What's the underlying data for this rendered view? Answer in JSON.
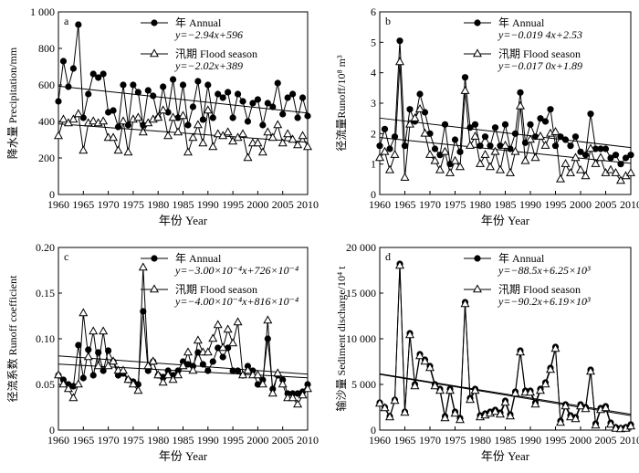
{
  "chart_data": [
    {
      "type": "line",
      "panel_label": "a",
      "xlabel": "年份 Year",
      "ylabel": "降水量 Precipitation/mm",
      "xlim": [
        1960,
        2010
      ],
      "ylim": [
        0,
        1000
      ],
      "xticks": [
        1960,
        1965,
        1970,
        1975,
        1980,
        1985,
        1990,
        1995,
        2000,
        2005,
        2010
      ],
      "yticks": [
        0,
        200,
        400,
        600,
        800,
        1000
      ],
      "ytick_labels": [
        "0",
        "200",
        "400",
        "600",
        "800",
        "1 000"
      ],
      "legend": [
        {
          "name": "年 Annual",
          "equation": "y=−2.94x+596"
        },
        {
          "name": "汛期 Flood season",
          "equation": "y=−2.02x+389"
        }
      ],
      "series": [
        {
          "name": "Annual",
          "marker": "circle",
          "trend": [
            596,
            -2.94
          ],
          "x": [
            1960,
            1961,
            1962,
            1963,
            1964,
            1965,
            1966,
            1967,
            1968,
            1969,
            1970,
            1971,
            1972,
            1973,
            1974,
            1975,
            1976,
            1977,
            1978,
            1979,
            1980,
            1981,
            1982,
            1983,
            1984,
            1985,
            1986,
            1987,
            1988,
            1989,
            1990,
            1991,
            1992,
            1993,
            1994,
            1995,
            1996,
            1997,
            1998,
            1999,
            2000,
            2001,
            2002,
            2003,
            2004,
            2005,
            2006,
            2007,
            2008,
            2009,
            2010
          ],
          "values": [
            510,
            730,
            590,
            690,
            930,
            420,
            550,
            660,
            640,
            660,
            450,
            460,
            370,
            600,
            380,
            600,
            560,
            380,
            570,
            540,
            420,
            590,
            450,
            630,
            420,
            600,
            380,
            480,
            620,
            410,
            600,
            420,
            550,
            530,
            560,
            420,
            550,
            510,
            400,
            500,
            520,
            380,
            500,
            480,
            610,
            440,
            530,
            550,
            420,
            530,
            430
          ]
        },
        {
          "name": "Flood season",
          "marker": "triangle",
          "trend": [
            389,
            -2.02
          ],
          "x": [
            1960,
            1961,
            1962,
            1963,
            1964,
            1965,
            1966,
            1967,
            1968,
            1969,
            1970,
            1971,
            1972,
            1973,
            1974,
            1975,
            1976,
            1977,
            1978,
            1979,
            1980,
            1981,
            1982,
            1983,
            1984,
            1985,
            1986,
            1987,
            1988,
            1989,
            1990,
            1991,
            1992,
            1993,
            1994,
            1995,
            1996,
            1997,
            1998,
            1999,
            2000,
            2001,
            2002,
            2003,
            2004,
            2005,
            2006,
            2007,
            2008,
            2009,
            2010
          ],
          "values": [
            320,
            410,
            390,
            410,
            440,
            240,
            390,
            400,
            390,
            400,
            310,
            310,
            240,
            400,
            230,
            410,
            420,
            340,
            390,
            410,
            420,
            460,
            320,
            420,
            340,
            430,
            230,
            310,
            380,
            280,
            460,
            260,
            330,
            320,
            340,
            290,
            310,
            330,
            200,
            280,
            280,
            230,
            340,
            310,
            380,
            280,
            330,
            300,
            270,
            320,
            260
          ]
        }
      ]
    },
    {
      "type": "line",
      "panel_label": "b",
      "xlabel": "年份 Year",
      "ylabel": "径流量Runoff/10⁸ m³",
      "xlim": [
        1960,
        2010
      ],
      "ylim": [
        0,
        6
      ],
      "xticks": [
        1960,
        1965,
        1970,
        1975,
        1980,
        1985,
        1990,
        1995,
        2000,
        2005,
        2010
      ],
      "yticks": [
        0,
        1,
        2,
        3,
        4,
        5,
        6
      ],
      "ytick_labels": [
        "0",
        "1",
        "2",
        "3",
        "4",
        "5",
        "6"
      ],
      "legend": [
        {
          "name": "年 Annual",
          "equation": "y=−0.019 4x+2.53"
        },
        {
          "name": "汛期 Flood season",
          "equation": "y=−0.017 0x+1.89"
        }
      ],
      "series": [
        {
          "name": "Annual",
          "marker": "circle",
          "trend": [
            2.53,
            -0.0194
          ],
          "x": [
            1960,
            1961,
            1962,
            1963,
            1964,
            1965,
            1966,
            1967,
            1968,
            1969,
            1970,
            1971,
            1972,
            1973,
            1974,
            1975,
            1976,
            1977,
            1978,
            1979,
            1980,
            1981,
            1982,
            1983,
            1984,
            1985,
            1986,
            1987,
            1988,
            1989,
            1990,
            1991,
            1992,
            1993,
            1994,
            1995,
            1996,
            1997,
            1998,
            1999,
            2000,
            2001,
            2002,
            2003,
            2004,
            2005,
            2006,
            2007,
            2008,
            2009,
            2010
          ],
          "values": [
            1.6,
            2.15,
            1.5,
            1.9,
            5.05,
            1.6,
            2.8,
            2.4,
            3.3,
            2.7,
            2.0,
            1.5,
            1.3,
            2.3,
            1.0,
            1.8,
            1.4,
            3.85,
            2.2,
            2.3,
            1.6,
            1.9,
            1.6,
            2.2,
            1.6,
            2.3,
            1.5,
            2.0,
            3.35,
            1.7,
            2.3,
            1.9,
            2.5,
            2.4,
            2.8,
            1.6,
            1.9,
            1.8,
            1.6,
            1.9,
            1.4,
            1.3,
            2.65,
            1.5,
            1.5,
            1.5,
            1.2,
            1.3,
            1.0,
            1.2,
            1.3
          ]
        },
        {
          "name": "Flood season",
          "marker": "triangle",
          "trend": [
            1.89,
            -0.017
          ],
          "x": [
            1960,
            1961,
            1962,
            1963,
            1964,
            1965,
            1966,
            1967,
            1968,
            1969,
            1970,
            1971,
            1972,
            1973,
            1974,
            1975,
            1976,
            1977,
            1978,
            1979,
            1980,
            1981,
            1982,
            1983,
            1984,
            1985,
            1986,
            1987,
            1988,
            1989,
            1990,
            1991,
            1992,
            1993,
            1994,
            1995,
            1996,
            1997,
            1998,
            1999,
            2000,
            2001,
            2002,
            2003,
            2004,
            2005,
            2006,
            2007,
            2008,
            2009,
            2010
          ],
          "values": [
            1.2,
            1.4,
            0.8,
            1.3,
            4.35,
            0.55,
            2.3,
            2.5,
            2.8,
            2.0,
            1.3,
            1.1,
            0.8,
            1.4,
            0.7,
            1.1,
            0.9,
            3.4,
            1.6,
            1.9,
            1.0,
            1.3,
            0.9,
            1.4,
            0.8,
            1.6,
            0.7,
            1.4,
            2.9,
            1.1,
            1.8,
            1.2,
            1.9,
            1.6,
            2.0,
            2.05,
            0.5,
            1.0,
            0.7,
            1.2,
            0.8,
            0.6,
            1.5,
            1.0,
            1.2,
            0.7,
            0.8,
            0.7,
            0.45,
            0.6,
            0.7
          ]
        }
      ]
    },
    {
      "type": "line",
      "panel_label": "c",
      "xlabel": "年份 Year",
      "ylabel": "径流系数 Runoff coefficient",
      "xlim": [
        1960,
        2010
      ],
      "ylim": [
        0,
        0.2
      ],
      "xticks": [
        1960,
        1965,
        1970,
        1975,
        1980,
        1985,
        1990,
        1995,
        2000,
        2005,
        2010
      ],
      "yticks": [
        0,
        0.05,
        0.1,
        0.15,
        0.2
      ],
      "ytick_labels": [
        "0",
        "0.05",
        "0.10",
        "0.15",
        "0.20"
      ],
      "legend": [
        {
          "name": "年 Annual",
          "equation": "y=−3.00×10⁻⁴x+726×10⁻⁴"
        },
        {
          "name": "汛期 Flood season",
          "equation": "y=−4.00×10⁻⁴x+816×10⁻⁴"
        }
      ],
      "series": [
        {
          "name": "Annual",
          "marker": "circle",
          "trend": [
            0.0726,
            -0.0003
          ],
          "x": [
            1960,
            1961,
            1962,
            1963,
            1964,
            1965,
            1966,
            1967,
            1968,
            1969,
            1970,
            1971,
            1972,
            1973,
            1974,
            1975,
            1976,
            1977,
            1978,
            1979,
            1980,
            1981,
            1982,
            1983,
            1984,
            1985,
            1986,
            1987,
            1988,
            1989,
            1990,
            1991,
            1992,
            1993,
            1994,
            1995,
            1996,
            1997,
            1998,
            1999,
            2000,
            2001,
            2002,
            2003,
            2004,
            2005,
            2006,
            2007,
            2008,
            2009,
            2010
          ],
          "values": [
            0.06,
            0.055,
            0.05,
            0.048,
            0.093,
            0.057,
            0.088,
            0.06,
            0.085,
            0.065,
            0.087,
            0.075,
            0.06,
            0.062,
            0.055,
            0.053,
            0.05,
            0.13,
            0.065,
            0.075,
            0.06,
            0.058,
            0.065,
            0.06,
            0.065,
            0.075,
            0.072,
            0.07,
            0.085,
            0.072,
            0.065,
            0.075,
            0.09,
            0.08,
            0.09,
            0.065,
            0.065,
            0.06,
            0.07,
            0.065,
            0.05,
            0.055,
            0.1,
            0.045,
            0.06,
            0.055,
            0.04,
            0.04,
            0.04,
            0.042,
            0.05
          ]
        },
        {
          "name": "Flood season",
          "marker": "triangle",
          "trend": [
            0.0816,
            -0.0004
          ],
          "x": [
            1960,
            1961,
            1962,
            1963,
            1964,
            1965,
            1966,
            1967,
            1968,
            1969,
            1970,
            1971,
            1972,
            1973,
            1974,
            1975,
            1976,
            1977,
            1978,
            1979,
            1980,
            1981,
            1982,
            1983,
            1984,
            1985,
            1986,
            1987,
            1988,
            1989,
            1990,
            1991,
            1992,
            1993,
            1994,
            1995,
            1996,
            1997,
            1998,
            1999,
            2000,
            2001,
            2002,
            2003,
            2004,
            2005,
            2006,
            2007,
            2008,
            2009,
            2010
          ],
          "values": [
            0.06,
            0.05,
            0.045,
            0.035,
            0.05,
            0.128,
            0.08,
            0.108,
            0.07,
            0.108,
            0.07,
            0.075,
            0.065,
            0.065,
            0.055,
            0.05,
            0.043,
            0.178,
            0.07,
            0.075,
            0.06,
            0.052,
            0.06,
            0.055,
            0.06,
            0.07,
            0.085,
            0.065,
            0.098,
            0.085,
            0.085,
            0.1,
            0.115,
            0.09,
            0.11,
            0.095,
            0.118,
            0.06,
            0.065,
            0.06,
            0.06,
            0.05,
            0.12,
            0.04,
            0.062,
            0.05,
            0.035,
            0.035,
            0.028,
            0.038,
            0.045
          ]
        }
      ]
    },
    {
      "type": "line",
      "panel_label": "d",
      "xlabel": "年份 Year",
      "ylabel": "输沙量 Sediment discharge/10⁴ t",
      "xlim": [
        1960,
        2010
      ],
      "ylim": [
        0,
        20000
      ],
      "xticks": [
        1960,
        1965,
        1970,
        1975,
        1980,
        1985,
        1990,
        1995,
        2000,
        2005,
        2010
      ],
      "yticks": [
        0,
        5000,
        10000,
        15000,
        20000
      ],
      "ytick_labels": [
        "0",
        "5 000",
        "10 000",
        "15 000",
        "20 000"
      ],
      "legend": [
        {
          "name": "年 Annual",
          "equation": "y=−88.5x+6.25×10³"
        },
        {
          "name": "汛期 Flood season",
          "equation": "y=−90.2x+6.19×10³"
        }
      ],
      "series": [
        {
          "name": "Annual",
          "marker": "circle",
          "trend": [
            6250,
            -88.5
          ],
          "x": [
            1960,
            1961,
            1962,
            1963,
            1964,
            1965,
            1966,
            1967,
            1968,
            1969,
            1970,
            1971,
            1972,
            1973,
            1974,
            1975,
            1976,
            1977,
            1978,
            1979,
            1980,
            1981,
            1982,
            1983,
            1984,
            1985,
            1986,
            1987,
            1988,
            1989,
            1990,
            1991,
            1992,
            1993,
            1994,
            1995,
            1996,
            1997,
            1998,
            1999,
            2000,
            2001,
            2002,
            2003,
            2004,
            2005,
            2006,
            2007,
            2008,
            2009,
            2010
          ],
          "values": [
            3000,
            2500,
            1500,
            3300,
            18200,
            2000,
            10600,
            5000,
            8300,
            7700,
            7000,
            5000,
            4500,
            1500,
            4500,
            2000,
            1300,
            14000,
            3500,
            4500,
            1600,
            1800,
            2000,
            2200,
            1900,
            3200,
            1700,
            4200,
            8700,
            4300,
            4300,
            3000,
            4500,
            5200,
            6800,
            9100,
            1000,
            2800,
            1600,
            1400,
            2800,
            2500,
            6600,
            700,
            2400,
            2600,
            800,
            300,
            200,
            300,
            600
          ]
        },
        {
          "name": "Flood season",
          "marker": "triangle",
          "trend": [
            6190,
            -90.2
          ],
          "x": [
            1960,
            1961,
            1962,
            1963,
            1964,
            1965,
            1966,
            1967,
            1968,
            1969,
            1970,
            1971,
            1972,
            1973,
            1974,
            1975,
            1976,
            1977,
            1978,
            1979,
            1980,
            1981,
            1982,
            1983,
            1984,
            1985,
            1986,
            1987,
            1988,
            1989,
            1990,
            1991,
            1992,
            1993,
            1994,
            1995,
            1996,
            1997,
            1998,
            1999,
            2000,
            2001,
            2002,
            2003,
            2004,
            2005,
            2006,
            2007,
            2008,
            2009,
            2010
          ],
          "values": [
            2900,
            2400,
            1400,
            3200,
            18000,
            1900,
            10400,
            4800,
            8100,
            7500,
            6800,
            4800,
            4300,
            1300,
            4300,
            1800,
            1100,
            13800,
            3300,
            4300,
            1400,
            1600,
            1800,
            2000,
            1700,
            3000,
            1500,
            4000,
            8500,
            4100,
            4100,
            2800,
            4300,
            5000,
            6600,
            8900,
            800,
            2600,
            1400,
            1200,
            2600,
            2300,
            6400,
            500,
            2200,
            2400,
            600,
            150,
            100,
            150,
            400
          ]
        }
      ]
    }
  ]
}
